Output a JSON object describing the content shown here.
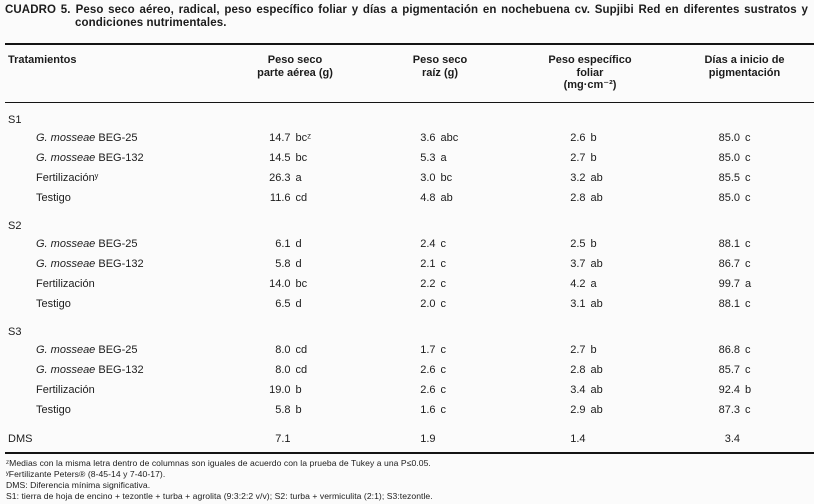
{
  "caption": {
    "label": "CUADRO 5.",
    "text": "Peso seco aéreo, radical, peso específico foliar y días a pigmentación en nochebuena cv. Supjibi Red en diferentes sustratos y condiciones nutrimentales."
  },
  "table": {
    "columns": [
      {
        "id": "tratamientos",
        "lines": [
          "Tratamientos"
        ]
      },
      {
        "id": "peso-seco-parte-aerea",
        "lines": [
          "Peso seco",
          "parte aérea (g)"
        ]
      },
      {
        "id": "peso-seco-raiz",
        "lines": [
          "Peso seco",
          "raíz (g)"
        ]
      },
      {
        "id": "peso-especifico-foliar",
        "lines": [
          "Peso específico",
          "foliar",
          "(mg·cm⁻²)"
        ]
      },
      {
        "id": "dias-inicio-pigmentacion",
        "lines": [
          "Días a inicio de",
          "pigmentación"
        ]
      }
    ],
    "sections": [
      {
        "label": "S1",
        "rows": [
          {
            "species": "G. mosseae",
            "strain": "BEG-25",
            "cells": [
              "14.7 bcᶻ",
              "3.6 abc",
              "2.6 b",
              "85.0 c"
            ]
          },
          {
            "species": "G. mosseae",
            "strain": "BEG-132",
            "cells": [
              "14.5 bc",
              "5.3 a",
              "2.7 b",
              "85.0 c"
            ]
          },
          {
            "name": "Fertilizaciónʸ",
            "cells": [
              "26.3 a",
              "3.0 bc",
              "3.2 ab",
              "85.5 c"
            ]
          },
          {
            "name": "Testigo",
            "cells": [
              "11.6 cd",
              "4.8 ab",
              "2.8 ab",
              "85.0 c"
            ]
          }
        ]
      },
      {
        "label": "S2",
        "rows": [
          {
            "species": "G. mosseae",
            "strain": "BEG-25",
            "cells": [
              "6.1 d",
              "2.4 c",
              "2.5 b",
              "88.1 c"
            ]
          },
          {
            "species": "G. mosseae",
            "strain": "BEG-132",
            "cells": [
              "5.8 d",
              "2.1 c",
              "3.7 ab",
              "86.7 c"
            ]
          },
          {
            "name": "Fertilización",
            "cells": [
              "14.0 bc",
              "2.2 c",
              "4.2 a",
              "99.7 a"
            ]
          },
          {
            "name": "Testigo",
            "cells": [
              "6.5 d",
              "2.0 c",
              "3.1 ab",
              "88.1 c"
            ]
          }
        ]
      },
      {
        "label": "S3",
        "rows": [
          {
            "species": "G. mosseae",
            "strain": "BEG-25",
            "cells": [
              "8.0 cd",
              "1.7 c",
              "2.7 b",
              "86.8 c"
            ]
          },
          {
            "species": "G. mosseae",
            "strain": "BEG-132",
            "cells": [
              "8.0 cd",
              "2.6 c",
              "2.8 ab",
              "85.7 c"
            ]
          },
          {
            "name": "Fertilización",
            "cells": [
              "19.0 b",
              "2.6 c",
              "3.4 ab",
              "92.4 b"
            ]
          },
          {
            "name": "Testigo",
            "cells": [
              "5.8 b",
              "1.6 c",
              "2.9 ab",
              "87.3 c"
            ]
          }
        ]
      }
    ],
    "dms": {
      "label": "DMS",
      "cells": [
        "7.1",
        "1.9",
        "1.4",
        "3.4"
      ]
    }
  },
  "footnotes": [
    "ᶻMedias con la misma letra dentro de columnas son iguales de acuerdo con la prueba de Tukey a una P≤0.05.",
    "ʸFertilizante Peters® (8-45-14 y 7-40-17).",
    "DMS: Diferencia mínima significativa.",
    "S1: tierra de hoja de encino + tezontle + turba + agrolita (9:3:2:2 v/v); S2: turba + vermiculita (2:1); S3:tezontle."
  ]
}
